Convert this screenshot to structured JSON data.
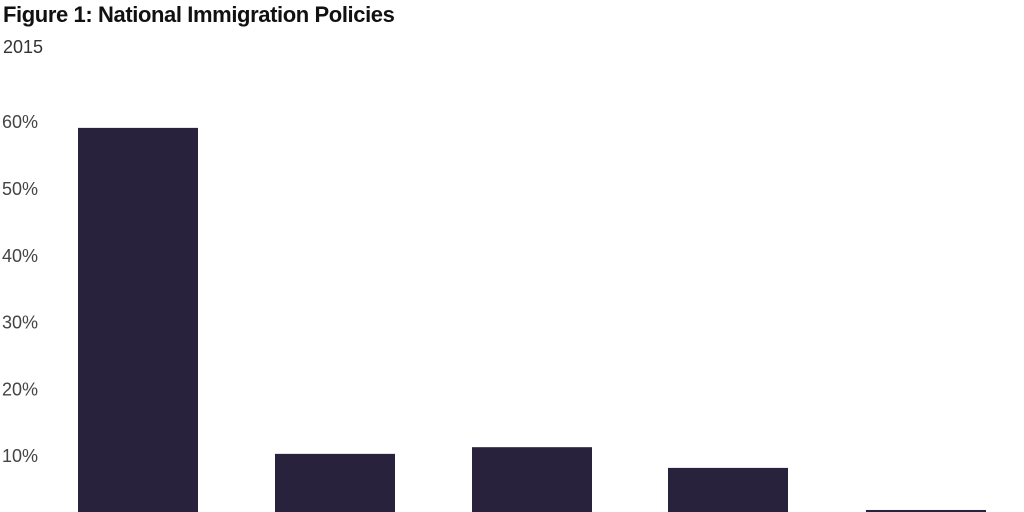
{
  "chart_data": {
    "type": "bar",
    "title": "Figure 1: National Immigration Policies",
    "subtitle": "2015",
    "categories": [
      "",
      "",
      "",
      "",
      ""
    ],
    "values": [
      59,
      10.2,
      11.2,
      8.1,
      1.8
    ],
    "ylim": [
      0,
      60
    ],
    "yticks": [
      10,
      20,
      30,
      40,
      50,
      60
    ],
    "ytick_labels": [
      "10%",
      "20%",
      "30%",
      "40%",
      "50%",
      "60%"
    ],
    "xlabel": "",
    "ylabel": "",
    "grid": false,
    "bar_color": "#29223c"
  }
}
